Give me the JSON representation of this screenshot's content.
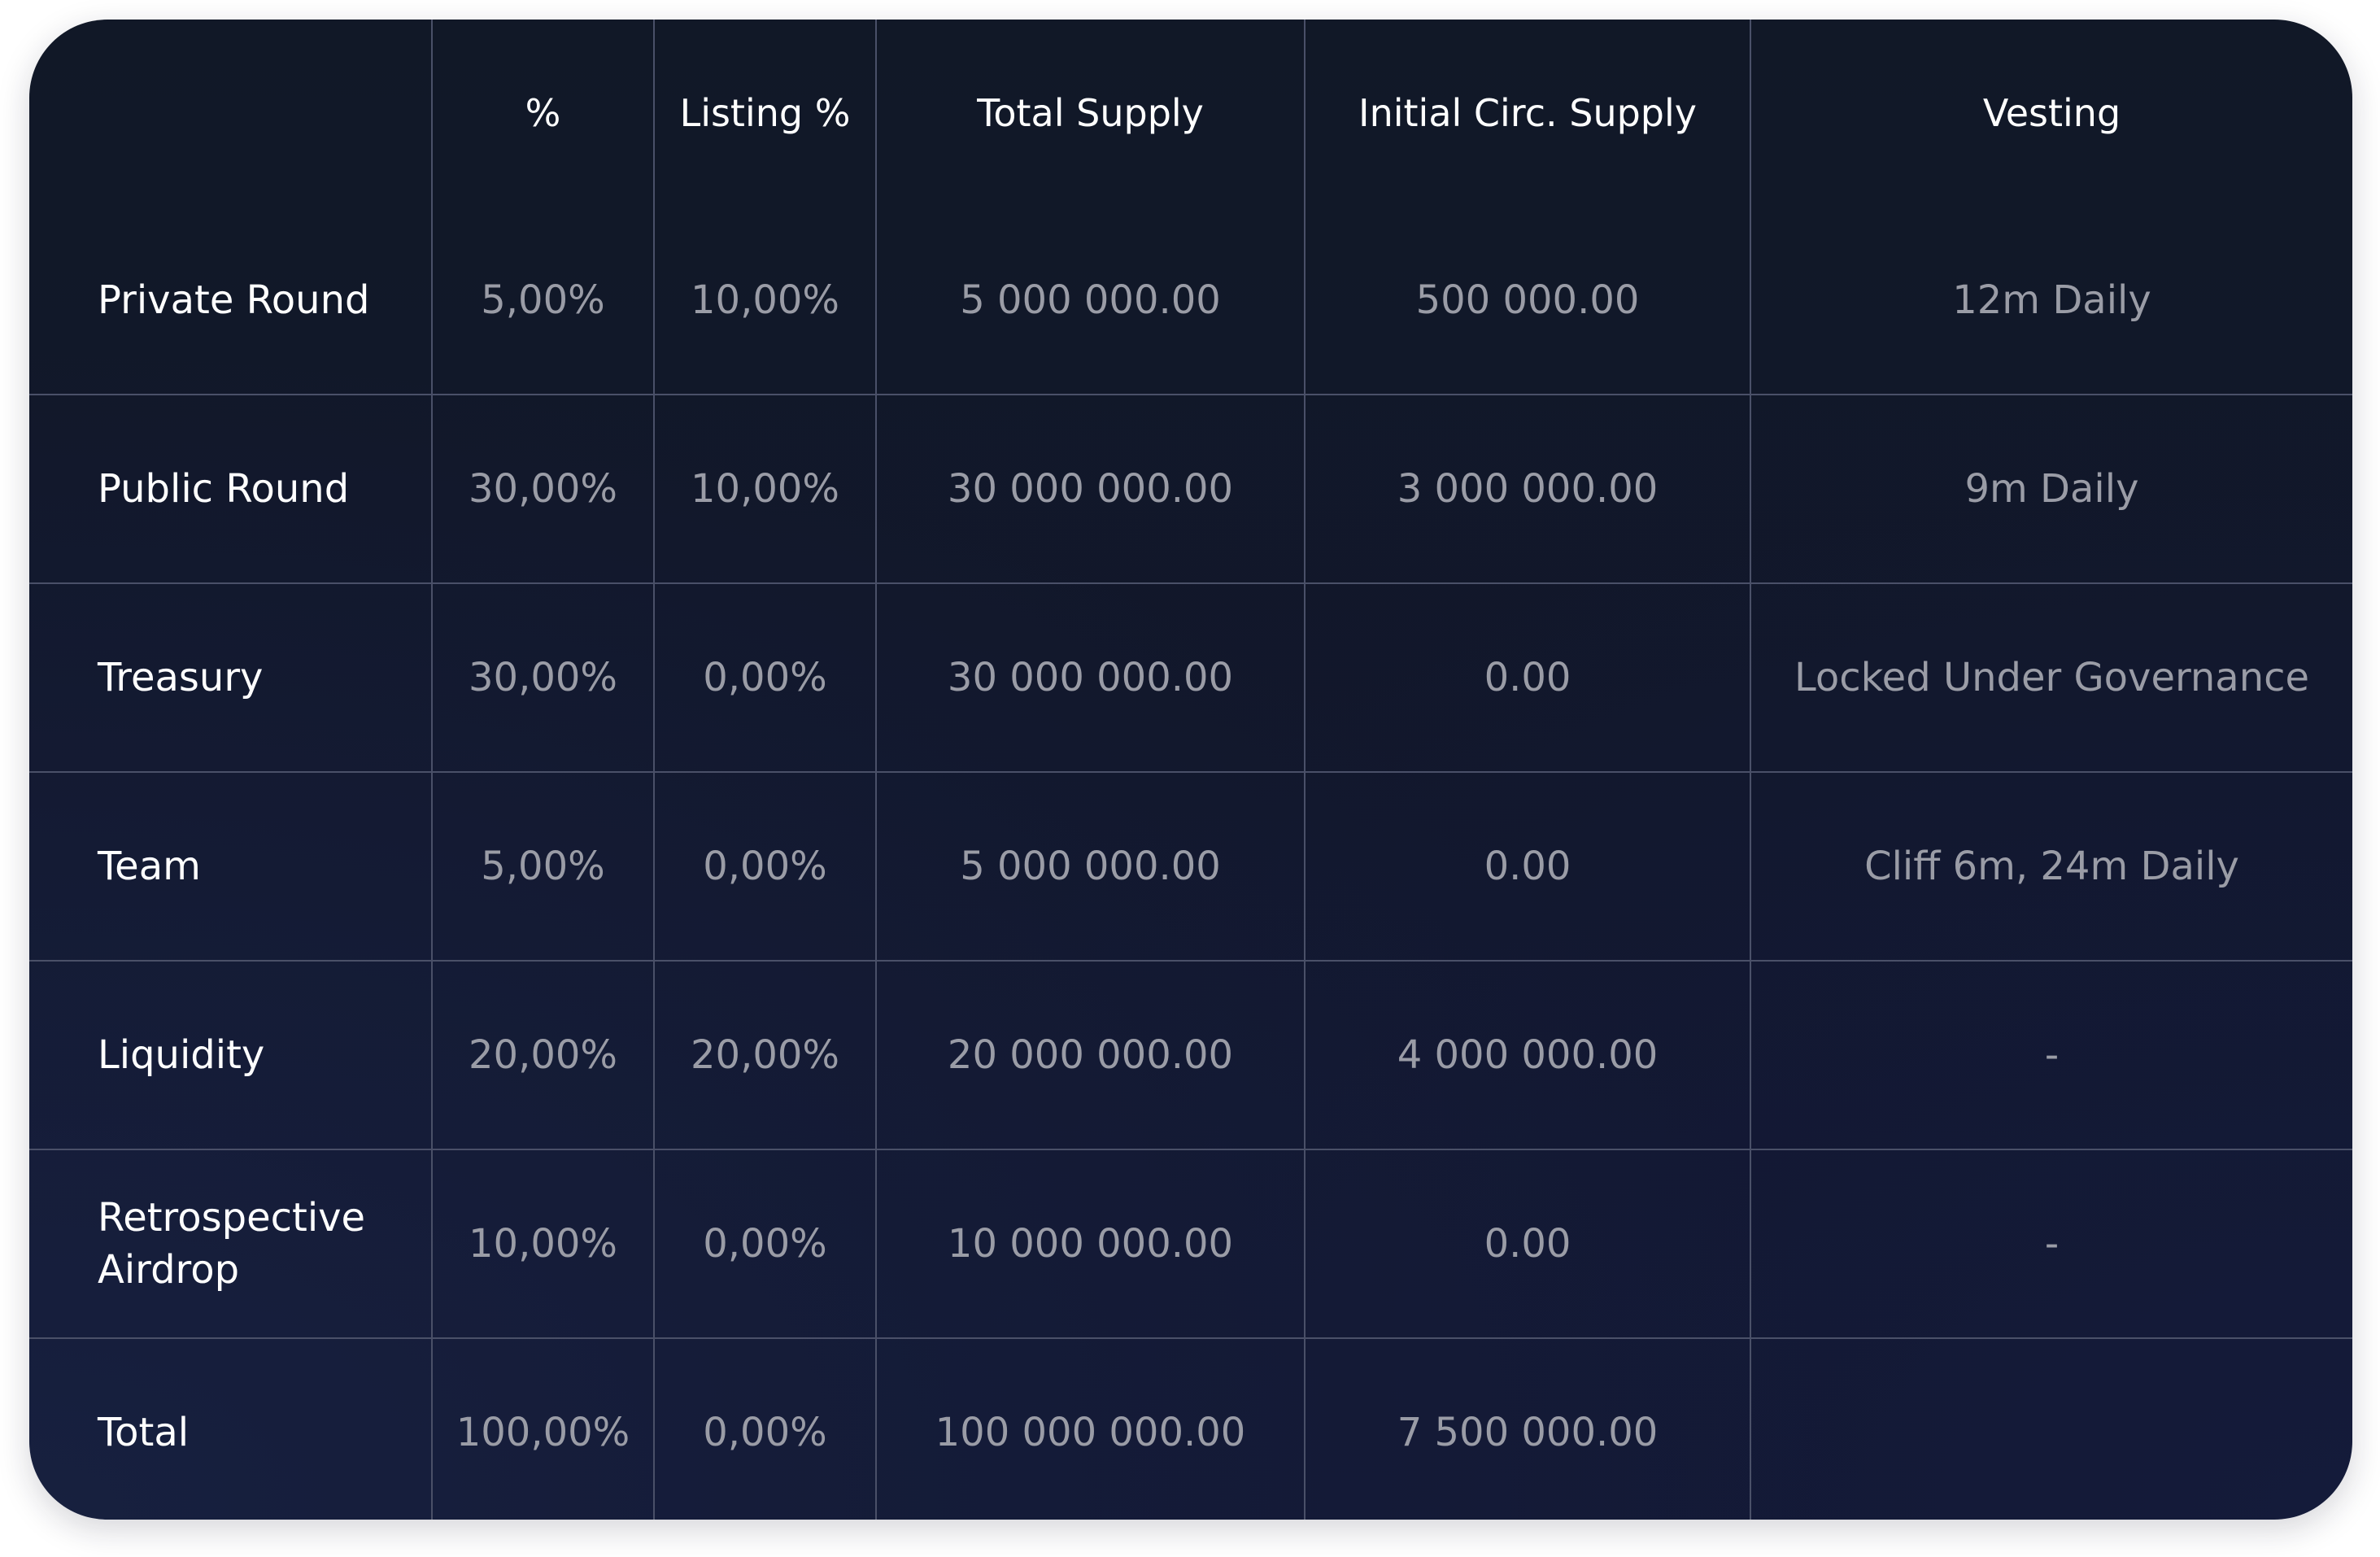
{
  "table": {
    "headers": [
      "",
      "%",
      "Listing %",
      "Total Supply",
      "Initial Circ. Supply",
      "Vesting"
    ],
    "rows": [
      {
        "label": "Private Round",
        "percent": "5,00%",
        "listing": "10,00%",
        "total_supply": "5 000 000.00",
        "initial_circ": "500 000.00",
        "vesting": "12m Daily"
      },
      {
        "label": "Public Round",
        "percent": "30,00%",
        "listing": "10,00%",
        "total_supply": "30 000 000.00",
        "initial_circ": "3 000 000.00",
        "vesting": "9m Daily"
      },
      {
        "label": "Treasury",
        "percent": "30,00%",
        "listing": "0,00%",
        "total_supply": "30 000 000.00",
        "initial_circ": "0.00",
        "vesting": "Locked Under Governance"
      },
      {
        "label": "Team",
        "percent": "5,00%",
        "listing": "0,00%",
        "total_supply": "5 000 000.00",
        "initial_circ": "0.00",
        "vesting": "Cliff 6m, 24m Daily"
      },
      {
        "label": "Liquidity",
        "percent": "20,00%",
        "listing": "20,00%",
        "total_supply": "20 000 000.00",
        "initial_circ": "4 000 000.00",
        "vesting": "-"
      },
      {
        "label": "Retrospective Airdrop",
        "percent": "10,00%",
        "listing": "0,00%",
        "total_supply": "10 000 000.00",
        "initial_circ": "0.00",
        "vesting": "-"
      },
      {
        "label": "Total",
        "percent": "100,00%",
        "listing": "0,00%",
        "total_supply": "100 000 000.00",
        "initial_circ": "7 500 000.00",
        "vesting": ""
      }
    ]
  },
  "colors": {
    "background": "#111827",
    "grid_line": "#4a5068",
    "header_text": "#ffffff",
    "label_text": "#ffffff",
    "value_text": "#9a9ca6"
  }
}
